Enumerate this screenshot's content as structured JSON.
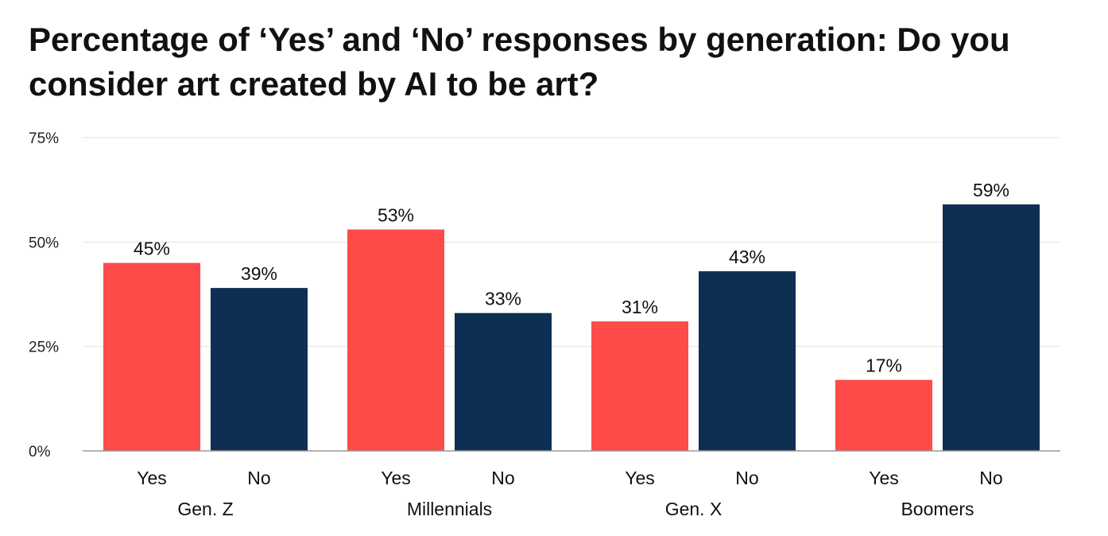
{
  "chart_data": {
    "type": "bar",
    "title": "Percentage of ‘Yes’ and ‘No’ responses by generation: Do you consider art created by AI to be art?",
    "groups": [
      "Gen. Z",
      "Millennials",
      "Gen. X",
      "Boomers"
    ],
    "bar_labels": [
      "Yes",
      "No"
    ],
    "series": [
      {
        "name": "Yes",
        "values": [
          45,
          53,
          31,
          17
        ],
        "color": "#FF4B47"
      },
      {
        "name": "No",
        "values": [
          39,
          33,
          43,
          59
        ],
        "color": "#0E2E52"
      }
    ],
    "data_labels": {
      "Yes": [
        "45%",
        "53%",
        "31%",
        "17%"
      ],
      "No": [
        "39%",
        "33%",
        "43%",
        "59%"
      ]
    },
    "ylim": [
      0,
      75
    ],
    "yticks": [
      0,
      25,
      50,
      75
    ],
    "ytick_labels": [
      "0%",
      "25%",
      "50%",
      "75%"
    ],
    "grid": true,
    "legend": "none",
    "xlabel": "",
    "ylabel": ""
  }
}
